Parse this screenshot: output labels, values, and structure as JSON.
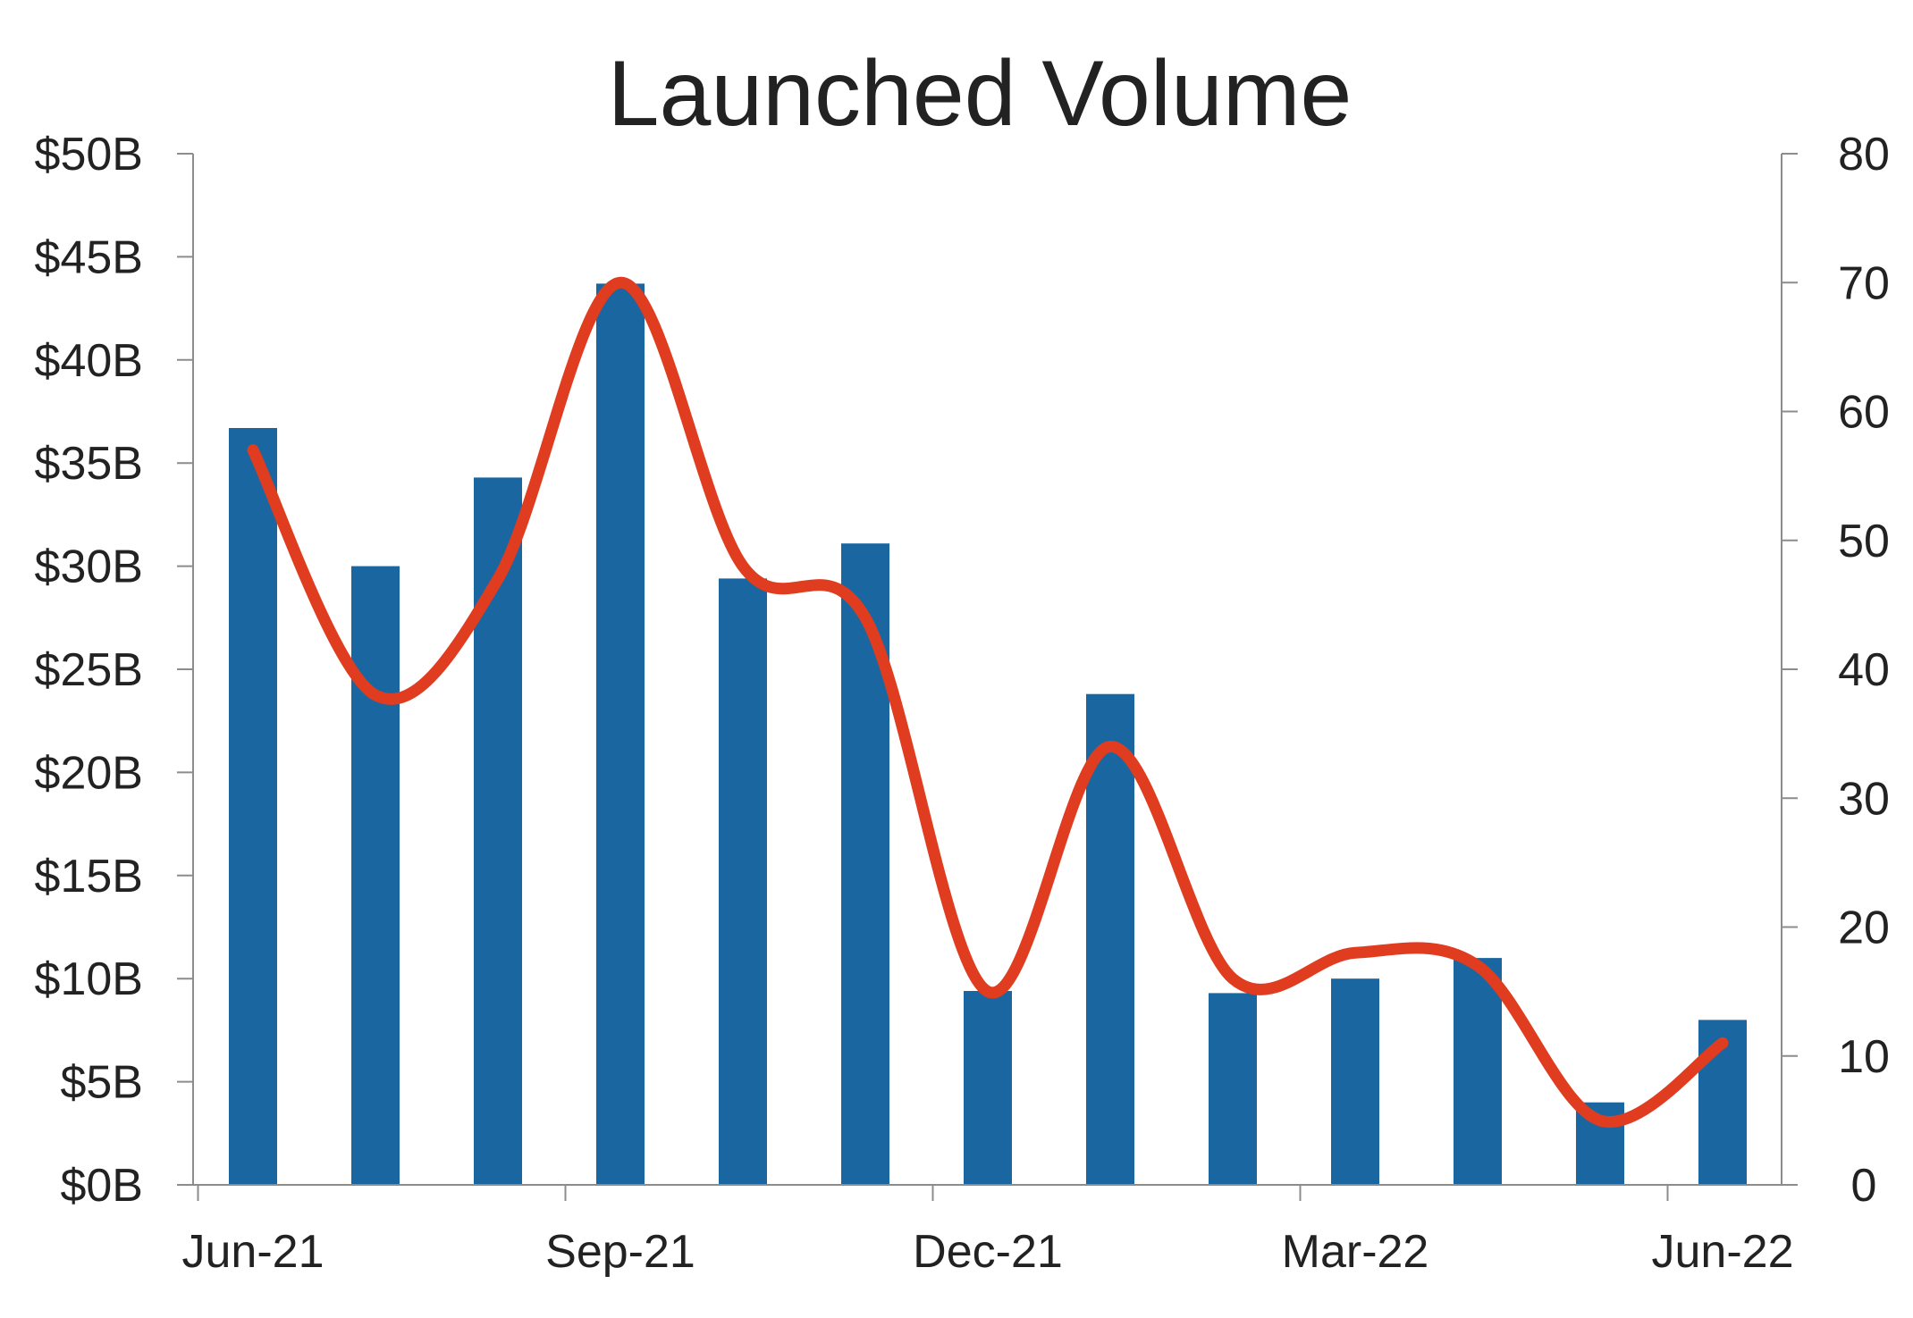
{
  "chart_data": {
    "type": "bar",
    "title": "Launched Volume",
    "xlabel": "",
    "ylabel": "",
    "y2label": "",
    "x_tick_labels": [
      "Jun-21",
      "Sep-21",
      "Dec-21",
      "Mar-22",
      "Jun-22"
    ],
    "y_tick_labels": [
      "$0B",
      "$5B",
      "$10B",
      "$15B",
      "$20B",
      "$25B",
      "$30B",
      "$35B",
      "$40B",
      "$45B",
      "$50B"
    ],
    "y2_tick_labels": [
      "0",
      "10",
      "20",
      "30",
      "40",
      "50",
      "60",
      "70",
      "80"
    ],
    "ylim": [
      0,
      50
    ],
    "y2lim": [
      0,
      80
    ],
    "categories": [
      "Jun-21",
      "Jul-21",
      "Aug-21",
      "Sep-21",
      "Oct-21",
      "Nov-21",
      "Dec-21",
      "Jan-22",
      "Feb-22",
      "Mar-22",
      "Apr-22",
      "May-22",
      "Jun-22"
    ],
    "series": [
      {
        "type": "bar",
        "axis": "left",
        "color": "#1a66a0",
        "values": [
          36.7,
          30.0,
          34.3,
          43.7,
          29.4,
          31.1,
          9.4,
          23.8,
          9.3,
          10.0,
          11.0,
          4.0,
          8.0
        ]
      },
      {
        "type": "line",
        "axis": "right",
        "smooth": true,
        "color": "#e03c1f",
        "values": [
          57,
          38,
          47,
          70,
          48,
          44,
          15,
          34,
          16,
          18,
          17,
          5,
          11
        ]
      }
    ],
    "grid": false,
    "legend": "none"
  }
}
